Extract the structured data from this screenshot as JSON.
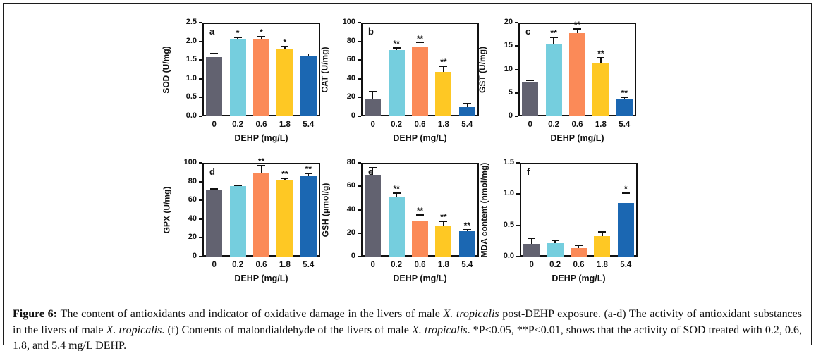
{
  "figure": {
    "background": "#ffffff",
    "border_color": "#1c1c1c"
  },
  "bar_colors": [
    "#626270",
    "#75cede",
    "#fb8a58",
    "#fec824",
    "#1b67b2"
  ],
  "chart_data": [
    {
      "type": "bar",
      "panel": "a",
      "ylabel": "SOD (U/mg)",
      "xlabel": "DEHP (mg/L)",
      "categories": [
        "0",
        "0.2",
        "0.6",
        "1.8",
        "5.4"
      ],
      "values": [
        1.58,
        2.07,
        2.07,
        1.81,
        1.62
      ],
      "errors": [
        0.09,
        0.04,
        0.05,
        0.05,
        0.04
      ],
      "significance": [
        "",
        "*",
        "*",
        "*",
        ""
      ],
      "ylim": [
        0,
        2.5
      ],
      "ytick_values": [
        0,
        0.5,
        1.0,
        1.5,
        2.0,
        2.5
      ],
      "ytick_labels": [
        "0.0",
        "0.5",
        "1.0",
        "1.5",
        "2.0",
        "2.5"
      ]
    },
    {
      "type": "bar",
      "panel": "b",
      "ylabel": "CAT (U/mg)",
      "xlabel": "DEHP (mg/L)",
      "categories": [
        "0",
        "0.2",
        "0.6",
        "1.8",
        "5.4"
      ],
      "values": [
        18,
        70.5,
        74.5,
        47,
        10
      ],
      "errors": [
        8,
        2.5,
        4,
        6.5,
        3.5
      ],
      "significance": [
        "",
        "**",
        "**",
        "**",
        ""
      ],
      "ylim": [
        0,
        100
      ],
      "ytick_values": [
        0,
        20,
        40,
        60,
        80,
        100
      ],
      "ytick_labels": [
        "0",
        "20",
        "40",
        "60",
        "80",
        "100"
      ]
    },
    {
      "type": "bar",
      "panel": "c",
      "ylabel": "GST (U/mg)",
      "xlabel": "DEHP (mg/L)",
      "categories": [
        "0",
        "0.2",
        "0.6",
        "1.8",
        "5.4"
      ],
      "values": [
        7.3,
        15.5,
        17.8,
        11.4,
        3.6
      ],
      "errors": [
        0.3,
        1.3,
        0.8,
        1.1,
        0.4
      ],
      "significance": [
        "",
        "**",
        "**",
        "**",
        "**"
      ],
      "ylim": [
        0,
        20
      ],
      "ytick_values": [
        0,
        5,
        10,
        15,
        20
      ],
      "ytick_labels": [
        "0",
        "5",
        "10",
        "15",
        "20"
      ]
    },
    {
      "type": "bar",
      "panel": "d",
      "ylabel": "GPX (U/mg)",
      "xlabel": "DEHP (mg/L)",
      "categories": [
        "0",
        "0.2",
        "0.6",
        "1.8",
        "5.4"
      ],
      "values": [
        71,
        75,
        89.5,
        81.5,
        85.5
      ],
      "errors": [
        1,
        0.7,
        7.5,
        2,
        3
      ],
      "significance": [
        "",
        "",
        "**",
        "**",
        "**"
      ],
      "ylim": [
        0,
        100
      ],
      "ytick_values": [
        0,
        20,
        40,
        60,
        80,
        100
      ],
      "ytick_labels": [
        "0",
        "20",
        "40",
        "60",
        "80",
        "100"
      ]
    },
    {
      "type": "bar",
      "panel": "e",
      "ylabel": "GSH (μmol/g)",
      "xlabel": "DEHP (mg/L)",
      "categories": [
        "0",
        "0.2",
        "0.6",
        "1.8",
        "5.4"
      ],
      "values": [
        69.5,
        51,
        30.5,
        26,
        21.5
      ],
      "errors": [
        6.5,
        3.3,
        4.8,
        4,
        1.6
      ],
      "significance": [
        "",
        "**",
        "**",
        "**",
        "**"
      ],
      "ylim": [
        0,
        80
      ],
      "ytick_values": [
        0,
        20,
        40,
        60,
        80
      ],
      "ytick_labels": [
        "0",
        "20",
        "40",
        "60",
        "80"
      ]
    },
    {
      "type": "bar",
      "panel": "f",
      "ylabel": "MDA content (nmol/mg)",
      "xlabel": "DEHP (mg/L)",
      "categories": [
        "0",
        "0.2",
        "0.6",
        "1.8",
        "5.4"
      ],
      "values": [
        0.2,
        0.21,
        0.13,
        0.33,
        0.86
      ],
      "errors": [
        0.09,
        0.05,
        0.045,
        0.06,
        0.15
      ],
      "significance": [
        "",
        "",
        "",
        "",
        "*"
      ],
      "ylim": [
        0,
        1.5
      ],
      "ytick_values": [
        0,
        0.5,
        1.0,
        1.5
      ],
      "ytick_labels": [
        "0.0",
        "0.5",
        "1.0",
        "1.5"
      ]
    }
  ],
  "caption": {
    "runs": [
      {
        "text": "Figure 6: ",
        "style": "b"
      },
      {
        "text": "The content of antioxidants and indicator of oxidative damage in the livers of male ",
        "style": ""
      },
      {
        "text": "X. tropicalis",
        "style": "i"
      },
      {
        "text": " post-DEHP exposure. (a-d) The activity of antioxidant substances in the livers of male ",
        "style": ""
      },
      {
        "text": "X. tropicalis",
        "style": "i"
      },
      {
        "text": ". (f) Contents of malondialdehyde of the livers of male ",
        "style": ""
      },
      {
        "text": "X. tropicalis",
        "style": "i"
      },
      {
        "text": ". *P<0.05, **P<0.01, shows that the activity of SOD treated with 0.2, 0.6, 1.8, and 5.4 mg/L DEHP.",
        "style": ""
      }
    ]
  }
}
